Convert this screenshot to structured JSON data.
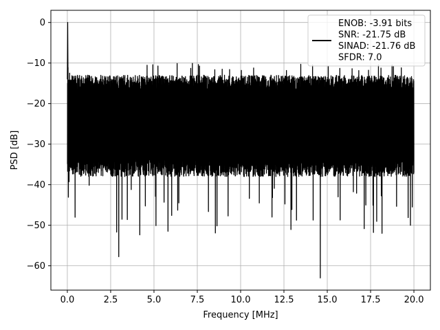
{
  "chart_data": {
    "type": "line",
    "title": "",
    "xlabel": "Frequency [MHz]",
    "ylabel": "PSD [dB]",
    "xlim": [
      -0.95,
      20.95
    ],
    "ylim": [
      -66,
      3
    ],
    "xticks": [
      0.0,
      2.5,
      5.0,
      7.5,
      10.0,
      12.5,
      15.0,
      17.5,
      20.0
    ],
    "xtick_labels": [
      "0.0",
      "2.5",
      "5.0",
      "7.5",
      "10.0",
      "12.5",
      "15.0",
      "17.5",
      "20.0"
    ],
    "yticks": [
      0,
      -10,
      -20,
      -30,
      -40,
      -50,
      -60
    ],
    "ytick_labels": [
      "0",
      "−10",
      "−20",
      "−30",
      "−40",
      "−50",
      "−60"
    ],
    "grid": true,
    "legend_position": "top-right",
    "series": [
      {
        "color": "#000000",
        "x_range": [
          0.0,
          20.0
        ],
        "peak": {
          "x": 0.02,
          "y": 0.0
        },
        "envelope": {
          "upper_typical": [
            -13,
            -17
          ],
          "upper_max": -10,
          "lower_typical": [
            -33,
            -38
          ],
          "lower_min": -63,
          "min_location": {
            "x": 14.6,
            "y": -63.0
          }
        }
      }
    ],
    "legend": {
      "lines": [
        "ENOB: -3.91 bits",
        "SNR: -21.75 dB",
        "SINAD: -21.76 dB",
        "SFDR: 7.0"
      ]
    }
  }
}
